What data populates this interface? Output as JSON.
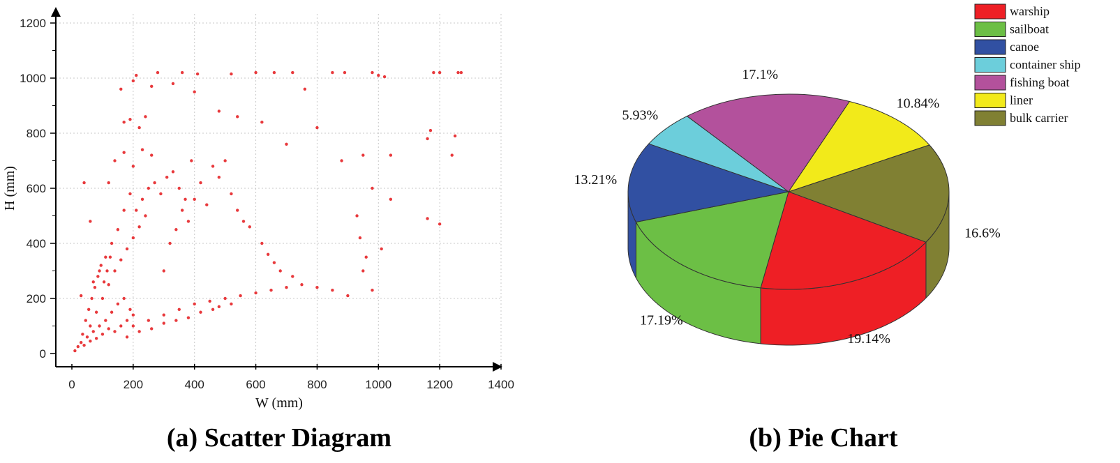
{
  "chart_data": [
    {
      "type": "scatter",
      "xlabel": "W (mm)",
      "ylabel": "H (mm)",
      "xlim": [
        0,
        1400
      ],
      "ylim": [
        0,
        1200
      ],
      "xticks": [
        "0",
        "200",
        "400",
        "600",
        "800",
        "1000",
        "1200",
        "1400"
      ],
      "yticks": [
        "0",
        "200",
        "400",
        "600",
        "800",
        "1000",
        "1200"
      ],
      "grid": true,
      "marker_color": "#e8393c",
      "series": [
        {
          "points": [
            [
              10,
              10
            ],
            [
              20,
              25
            ],
            [
              30,
              40
            ],
            [
              40,
              30
            ],
            [
              50,
              60
            ],
            [
              60,
              45
            ],
            [
              70,
              80
            ],
            [
              80,
              55
            ],
            [
              90,
              100
            ],
            [
              100,
              70
            ],
            [
              110,
              120
            ],
            [
              120,
              90
            ],
            [
              130,
              150
            ],
            [
              140,
              80
            ],
            [
              150,
              180
            ],
            [
              160,
              100
            ],
            [
              170,
              200
            ],
            [
              180,
              120
            ],
            [
              190,
              160
            ],
            [
              200,
              140
            ],
            [
              35,
              70
            ],
            [
              45,
              120
            ],
            [
              55,
              160
            ],
            [
              65,
              200
            ],
            [
              75,
              240
            ],
            [
              85,
              280
            ],
            [
              95,
              320
            ],
            [
              105,
              260
            ],
            [
              115,
              300
            ],
            [
              125,
              350
            ],
            [
              60,
              100
            ],
            [
              80,
              150
            ],
            [
              100,
              200
            ],
            [
              120,
              250
            ],
            [
              140,
              300
            ],
            [
              160,
              340
            ],
            [
              180,
              380
            ],
            [
              200,
              420
            ],
            [
              220,
              460
            ],
            [
              240,
              500
            ],
            [
              210,
              520
            ],
            [
              230,
              560
            ],
            [
              250,
              600
            ],
            [
              270,
              620
            ],
            [
              290,
              580
            ],
            [
              310,
              640
            ],
            [
              330,
              660
            ],
            [
              350,
              600
            ],
            [
              370,
              560
            ],
            [
              390,
              700
            ],
            [
              200,
              100
            ],
            [
              250,
              120
            ],
            [
              300,
              140
            ],
            [
              350,
              160
            ],
            [
              400,
              180
            ],
            [
              450,
              190
            ],
            [
              500,
              200
            ],
            [
              550,
              210
            ],
            [
              600,
              220
            ],
            [
              650,
              230
            ],
            [
              180,
              60
            ],
            [
              220,
              80
            ],
            [
              260,
              90
            ],
            [
              300,
              110
            ],
            [
              340,
              120
            ],
            [
              380,
              130
            ],
            [
              420,
              150
            ],
            [
              460,
              160
            ],
            [
              480,
              170
            ],
            [
              520,
              180
            ],
            [
              700,
              240
            ],
            [
              750,
              250
            ],
            [
              800,
              240
            ],
            [
              850,
              230
            ],
            [
              900,
              210
            ],
            [
              950,
              300
            ],
            [
              960,
              350
            ],
            [
              940,
              420
            ],
            [
              930,
              500
            ],
            [
              980,
              600
            ],
            [
              210,
              1010
            ],
            [
              280,
              1020
            ],
            [
              360,
              1020
            ],
            [
              410,
              1015
            ],
            [
              520,
              1015
            ],
            [
              600,
              1020
            ],
            [
              660,
              1020
            ],
            [
              720,
              1020
            ],
            [
              850,
              1020
            ],
            [
              890,
              1020
            ],
            [
              980,
              1020
            ],
            [
              1000,
              1010
            ],
            [
              1020,
              1005
            ],
            [
              1180,
              1020
            ],
            [
              1200,
              1020
            ],
            [
              1260,
              1020
            ],
            [
              1270,
              1020
            ],
            [
              160,
              960
            ],
            [
              200,
              990
            ],
            [
              260,
              970
            ],
            [
              330,
              980
            ],
            [
              400,
              950
            ],
            [
              480,
              880
            ],
            [
              540,
              860
            ],
            [
              620,
              840
            ],
            [
              700,
              760
            ],
            [
              760,
              960
            ],
            [
              800,
              820
            ],
            [
              880,
              700
            ],
            [
              950,
              720
            ],
            [
              1040,
              720
            ],
            [
              1160,
              780
            ],
            [
              1170,
              810
            ],
            [
              1240,
              720
            ],
            [
              1250,
              790
            ],
            [
              1040,
              560
            ],
            [
              1160,
              490
            ],
            [
              1200,
              470
            ],
            [
              1010,
              380
            ],
            [
              980,
              230
            ],
            [
              300,
              300
            ],
            [
              320,
              400
            ],
            [
              340,
              450
            ],
            [
              360,
              520
            ],
            [
              380,
              480
            ],
            [
              400,
              560
            ],
            [
              420,
              620
            ],
            [
              440,
              540
            ],
            [
              460,
              680
            ],
            [
              480,
              640
            ],
            [
              500,
              700
            ],
            [
              520,
              580
            ],
            [
              540,
              520
            ],
            [
              560,
              480
            ],
            [
              580,
              460
            ],
            [
              620,
              400
            ],
            [
              640,
              360
            ],
            [
              660,
              330
            ],
            [
              680,
              300
            ],
            [
              720,
              280
            ],
            [
              150,
              450
            ],
            [
              170,
              520
            ],
            [
              190,
              580
            ],
            [
              130,
              400
            ],
            [
              110,
              350
            ],
            [
              90,
              300
            ],
            [
              70,
              260
            ],
            [
              140,
              700
            ],
            [
              170,
              730
            ],
            [
              200,
              680
            ],
            [
              230,
              740
            ],
            [
              260,
              720
            ],
            [
              220,
              820
            ],
            [
              240,
              860
            ],
            [
              190,
              850
            ],
            [
              170,
              840
            ],
            [
              120,
              620
            ],
            [
              40,
              620
            ],
            [
              60,
              480
            ],
            [
              30,
              210
            ]
          ]
        }
      ]
    },
    {
      "type": "pie",
      "style": "3d",
      "slices": [
        {
          "label": "bulk carrier",
          "value": 16.6,
          "value_label": "16.6%",
          "color": "#808033"
        },
        {
          "label": "warship",
          "value": 19.14,
          "value_label": "19.14%",
          "color": "#ee1f25"
        },
        {
          "label": "sailboat",
          "value": 17.19,
          "value_label": "17.19%",
          "color": "#6cbf45"
        },
        {
          "label": "canoe",
          "value": 13.21,
          "value_label": "13.21%",
          "color": "#3150a2"
        },
        {
          "label": "container ship",
          "value": 5.93,
          "value_label": "5.93%",
          "color": "#6ccedb"
        },
        {
          "label": "fishing boat",
          "value": 17.1,
          "value_label": "17.1%",
          "color": "#b3519c"
        },
        {
          "label": "liner",
          "value": 10.84,
          "value_label": "10.84%",
          "color": "#f2ea1a"
        }
      ],
      "legend": [
        {
          "label": "warship",
          "color": "#ee1f25"
        },
        {
          "label": "sailboat",
          "color": "#6cbf45"
        },
        {
          "label": "canoe",
          "color": "#3150a2"
        },
        {
          "label": "container ship",
          "color": "#6ccedb"
        },
        {
          "label": "fishing boat",
          "color": "#b3519c"
        },
        {
          "label": "liner",
          "color": "#f2ea1a"
        },
        {
          "label": "bulk carrier",
          "color": "#808033"
        }
      ],
      "legend_position": "top-right"
    }
  ],
  "captions": {
    "scatter": "(a) Scatter Diagram",
    "pie": "(b) Pie Chart"
  }
}
